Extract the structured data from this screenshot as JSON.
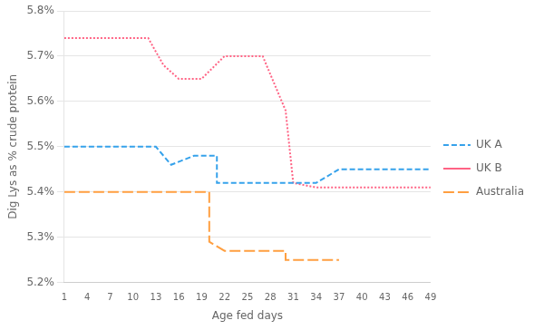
{
  "chart_data": {
    "type": "line",
    "xlabel": "Age fed days",
    "ylabel": "Dig Lys as % crude protein",
    "xlim": [
      1,
      49
    ],
    "xticks": [
      1,
      4,
      7,
      10,
      13,
      16,
      19,
      22,
      25,
      28,
      31,
      34,
      37,
      40,
      43,
      46,
      49
    ],
    "ylim": [
      5.2,
      5.8
    ],
    "yticks": [
      {
        "value": 5.2,
        "label": "5.2%"
      },
      {
        "value": 5.3,
        "label": "5.3%"
      },
      {
        "value": 5.4,
        "label": "5.4%"
      },
      {
        "value": 5.5,
        "label": "5.5%"
      },
      {
        "value": 5.6,
        "label": "5.6%"
      },
      {
        "value": 5.7,
        "label": "5.7%"
      },
      {
        "value": 5.8,
        "label": "5.8%"
      }
    ],
    "grid": "y",
    "legend": "right",
    "series": [
      {
        "name": "UK A",
        "line_style": "dashed",
        "x": [
          1,
          4,
          7,
          10,
          13,
          13,
          15,
          18,
          21,
          21,
          22,
          25,
          28,
          31,
          34,
          37,
          40,
          43,
          46,
          49
        ],
        "values": [
          5.5,
          5.5,
          5.5,
          5.5,
          5.5,
          5.5,
          5.46,
          5.48,
          5.48,
          5.42,
          5.42,
          5.42,
          5.42,
          5.42,
          5.42,
          5.45,
          5.45,
          5.45,
          5.45,
          5.45
        ]
      },
      {
        "name": "UK B",
        "line_style": "dotted",
        "x": [
          1,
          4,
          7,
          10,
          12,
          12,
          14,
          16,
          19,
          22,
          25,
          27,
          27,
          30,
          31,
          34,
          37,
          40,
          43,
          46,
          49
        ],
        "values": [
          5.74,
          5.74,
          5.74,
          5.74,
          5.74,
          5.74,
          5.68,
          5.65,
          5.65,
          5.7,
          5.7,
          5.7,
          5.7,
          5.58,
          5.42,
          5.41,
          5.41,
          5.41,
          5.41,
          5.41,
          5.41
        ]
      },
      {
        "name": "Australia",
        "line_style": "longdash",
        "x": [
          1,
          4,
          7,
          10,
          13,
          19,
          20,
          20,
          22,
          25,
          28,
          30,
          30,
          34,
          37
        ],
        "values": [
          5.4,
          5.4,
          5.4,
          5.4,
          5.4,
          5.4,
          5.4,
          5.29,
          5.27,
          5.27,
          5.27,
          5.27,
          5.25,
          5.25,
          5.25
        ]
      }
    ]
  }
}
